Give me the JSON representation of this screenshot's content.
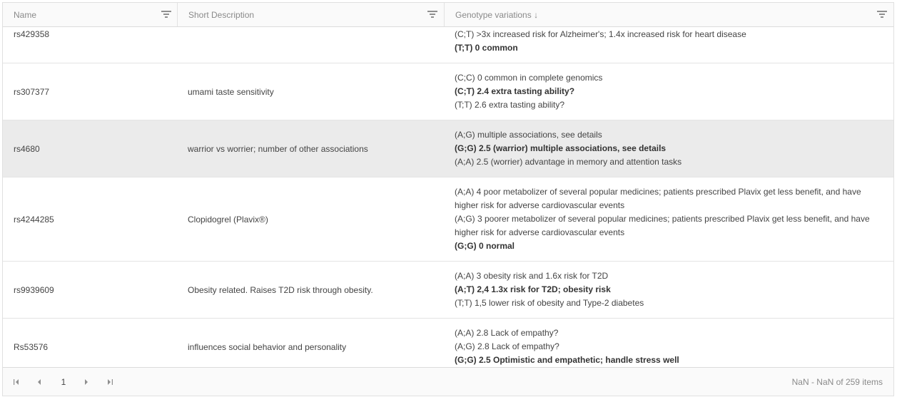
{
  "columns": {
    "name": "Name",
    "description": "Short Description",
    "genotype": "Genotype variations ↓"
  },
  "rows": [
    {
      "name": "rs429358",
      "description": "",
      "genotypes": [
        {
          "text": "(C;T) >3x increased risk for Alzheimer's; 1.4x increased risk for heart disease",
          "bold": false
        },
        {
          "text": "(T;T) 0 common",
          "bold": true
        }
      ]
    },
    {
      "name": "rs307377",
      "description": "umami taste sensitivity",
      "genotypes": [
        {
          "text": "(C;C) 0 common in complete genomics",
          "bold": false
        },
        {
          "text": "(C;T) 2.4 extra tasting ability?",
          "bold": true
        },
        {
          "text": "(T;T) 2.6 extra tasting ability?",
          "bold": false
        }
      ]
    },
    {
      "name": "rs4680",
      "description": "warrior vs worrier; number of other associations",
      "selected": true,
      "genotypes": [
        {
          "text": "(A;G) multiple associations, see details",
          "bold": false
        },
        {
          "text": "(G;G) 2.5 (warrior) multiple associations, see details",
          "bold": true
        },
        {
          "text": "(A;A) 2.5 (worrier) advantage in memory and attention tasks",
          "bold": false
        }
      ]
    },
    {
      "name": "rs4244285",
      "description": "Clopidogrel (Plavix®)",
      "genotypes": [
        {
          "text": "(A;A) 4 poor metabolizer of several popular medicines; patients prescribed Plavix get less benefit, and have",
          "bold": false
        },
        {
          "text": "higher risk for adverse cardiovascular events",
          "bold": false
        },
        {
          "text": "(A;G) 3 poorer metabolizer of several popular medicines; patients prescribed Plavix get less benefit, and have",
          "bold": false
        },
        {
          "text": "higher risk for adverse cardiovascular events",
          "bold": false
        },
        {
          "text": "(G;G) 0 normal",
          "bold": true
        }
      ]
    },
    {
      "name": "rs9939609",
      "description": "Obesity related. Raises T2D risk through obesity.",
      "genotypes": [
        {
          "text": "(A;A) 3 obesity risk and 1.6x risk for T2D",
          "bold": false
        },
        {
          "text": "(A;T) 2,4 1.3x risk for T2D; obesity risk",
          "bold": true
        },
        {
          "text": "(T;T) 1,5 lower risk of obesity and Type-2 diabetes",
          "bold": false
        }
      ]
    },
    {
      "name": "Rs53576",
      "description": "influences social behavior and personality",
      "genotypes": [
        {
          "text": "(A;A) 2.8 Lack of empathy?",
          "bold": false
        },
        {
          "text": "(A;G) 2.8 Lack of empathy?",
          "bold": false
        },
        {
          "text": "(G;G) 2.5 Optimistic and empathetic; handle stress well",
          "bold": true
        }
      ]
    }
  ],
  "pager": {
    "current_page": "1",
    "range_text": "NaN - NaN of 259 items"
  },
  "icons": {
    "filter": "filter-icon",
    "first": "first-page-icon",
    "prev": "prev-page-icon",
    "next": "next-page-icon",
    "last": "last-page-icon"
  },
  "colors": {
    "selected_row": "#ebebeb",
    "header_bg": "#fafafa",
    "border": "#e0e0e0"
  }
}
